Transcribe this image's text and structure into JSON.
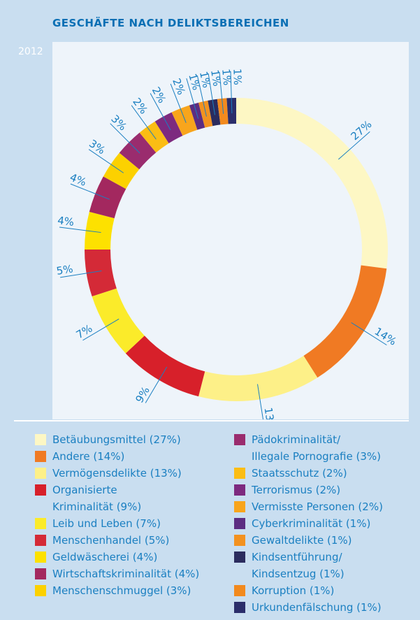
{
  "chart_data": {
    "type": "donut",
    "title": "GESCHÄFTE NACH DELIKTSBEREICHEN",
    "subtitle": "2012",
    "categories": [
      "Betäubungsmittel (27%)",
      "Andere (14%)",
      "Vermögensdelikte (13%)",
      "Organisierte\nKriminalität (9%)",
      "Leib und Leben (7%)",
      "Menschenhandel (5%)",
      "Geldwäscherei (4%)",
      "Wirtschaftskriminalität (4%)",
      "Menschenschmuggel (3%)",
      "Pädokriminalität/\nIllegale Pornografie (3%)",
      "Staatsschutz (2%)",
      "Terrorismus (2%)",
      "Vermisste Personen (2%)",
      "Cyberkriminalität (1%)",
      "Gewaltdelikte (1%)",
      "Kindsentführung/\nKindsentzug (1%)",
      "Korruption (1%)",
      "Urkundenfälschung (1%)"
    ],
    "values": [
      27,
      14,
      13,
      9,
      7,
      5,
      4,
      4,
      3,
      3,
      2,
      2,
      2,
      1,
      1,
      1,
      1,
      1
    ],
    "value_labels": [
      "27%",
      "14%",
      "13%",
      "9%",
      "7%",
      "5%",
      "4%",
      "4%",
      "3%",
      "3%",
      "2%",
      "2%",
      "2%",
      "1%",
      "1%",
      "1%",
      "1%",
      "1%"
    ],
    "colors": [
      "#fdf7c4",
      "#f07a23",
      "#fdf088",
      "#d7202a",
      "#fbeb2a",
      "#d42a37",
      "#fde100",
      "#a3285f",
      "#fcd100",
      "#9a2c6e",
      "#fbbd14",
      "#7d2a7f",
      "#f8a51c",
      "#5c2d82",
      "#f39220",
      "#2b2c5e",
      "#f28a1e",
      "#2b2e6b"
    ]
  }
}
